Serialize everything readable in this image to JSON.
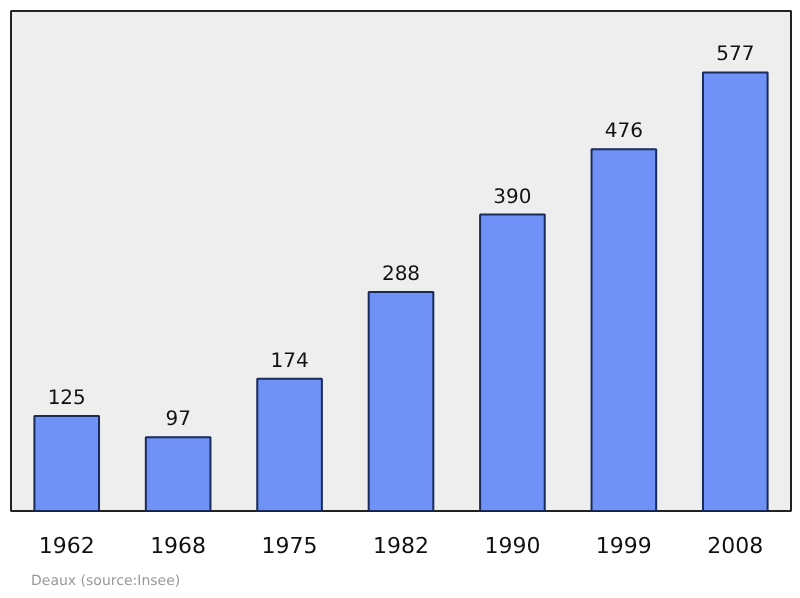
{
  "chart_data": {
    "type": "bar",
    "categories": [
      "1962",
      "1968",
      "1975",
      "1982",
      "1990",
      "1999",
      "2008"
    ],
    "values": [
      125,
      97,
      174,
      288,
      390,
      476,
      577
    ],
    "color": "#7092f7",
    "data_labels": true,
    "grid": false,
    "annotations": [
      "Deaux    (source:Insee)"
    ]
  }
}
